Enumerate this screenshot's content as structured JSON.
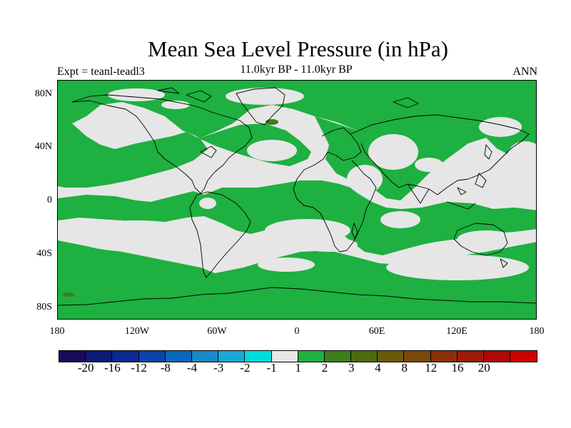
{
  "title": "Mean Sea Level Pressure (in hPa)",
  "experiment_label": "Expt = teanl-teadl3",
  "period_label": "11.0kyr BP - 11.0kyr BP",
  "season_label": "ANN",
  "lat_labels": [
    "80N",
    "40N",
    "0",
    "40S",
    "80S"
  ],
  "lon_labels": [
    "180",
    "120W",
    "60W",
    "0",
    "60E",
    "120E",
    "180"
  ],
  "colors": {
    "ocean_neutral": "#e6e6e6",
    "positive_1_2": "#1eb040",
    "positive_3_4": "#3c7d1c",
    "coastline": "#000000"
  },
  "colorbar": {
    "colors": [
      "#1a0a5a",
      "#0d1a78",
      "#0a2a92",
      "#0a44a8",
      "#0a66bb",
      "#1a88c8",
      "#18aad6",
      "#00dcdc",
      "#e6e6e6",
      "#1eb040",
      "#3c7d1c",
      "#4e6a10",
      "#6a5a0c",
      "#7a480a",
      "#8c3008",
      "#9c1c06",
      "#b00808",
      "#cc0000"
    ],
    "labels": [
      "-20",
      "-16",
      "-12",
      "-8",
      "-4",
      "-3",
      "-2",
      "-1",
      "1",
      "2",
      "3",
      "4",
      "8",
      "12",
      "16",
      "20"
    ]
  }
}
